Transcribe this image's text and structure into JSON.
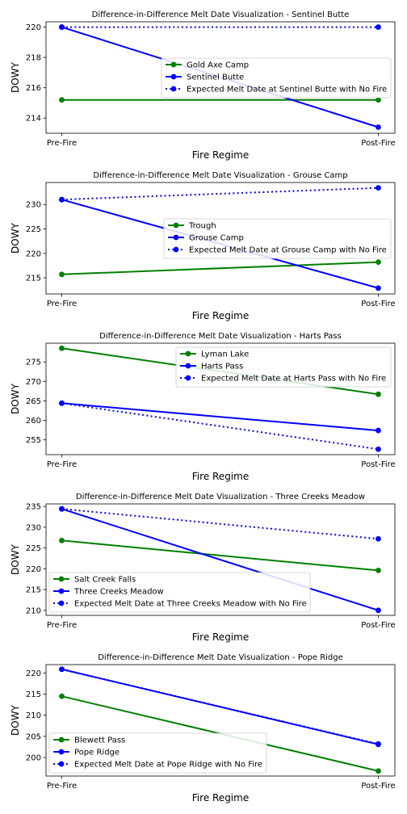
{
  "chart_data": [
    {
      "type": "line",
      "title": "Difference-in-Difference Melt Date Visualization - Sentinel Butte",
      "xlabel": "Fire Regime",
      "ylabel": "DOWY",
      "categories": [
        "Pre-Fire",
        "Post-Fire"
      ],
      "ylim": [
        213.0,
        220.35
      ],
      "yticks": [
        214,
        216,
        218,
        220
      ],
      "legend_position": "center-right",
      "series": [
        {
          "name": "Gold Axe Camp",
          "values": [
            215.2,
            215.2
          ],
          "color": "#008000",
          "style": "solid"
        },
        {
          "name": "Sentinel Butte",
          "values": [
            220.0,
            213.4
          ],
          "color": "#0000ff",
          "style": "solid"
        },
        {
          "name": "Expected Melt Date at Sentinel Butte with No Fire",
          "values": [
            220.0,
            220.0
          ],
          "color": "#0000ff",
          "style": "dotted"
        }
      ]
    },
    {
      "type": "line",
      "title": "Difference-in-Difference Melt Date Visualization - Grouse Camp",
      "xlabel": "Fire Regime",
      "ylabel": "DOWY",
      "categories": [
        "Pre-Fire",
        "Post-Fire"
      ],
      "ylim": [
        211.7,
        234.5
      ],
      "yticks": [
        215,
        220,
        225,
        230
      ],
      "legend_position": "center-right",
      "series": [
        {
          "name": "Trough",
          "values": [
            215.7,
            218.2
          ],
          "color": "#008000",
          "style": "solid"
        },
        {
          "name": "Grouse Camp",
          "values": [
            231.0,
            212.9
          ],
          "color": "#0000ff",
          "style": "solid"
        },
        {
          "name": "Expected Melt Date at Grouse Camp with No Fire",
          "values": [
            231.0,
            233.4
          ],
          "color": "#0000ff",
          "style": "dotted"
        }
      ]
    },
    {
      "type": "line",
      "title": "Difference-in-Difference Melt Date Visualization - Harts Pass",
      "xlabel": "Fire Regime",
      "ylabel": "DOWY",
      "categories": [
        "Pre-Fire",
        "Post-Fire"
      ],
      "ylim": [
        251.2,
        279.8
      ],
      "yticks": [
        255,
        260,
        265,
        270,
        275
      ],
      "legend_position": "upper-right",
      "series": [
        {
          "name": "Lyman Lake",
          "values": [
            278.5,
            266.7
          ],
          "color": "#008000",
          "style": "solid"
        },
        {
          "name": "Harts Pass",
          "values": [
            264.4,
            257.4
          ],
          "color": "#0000ff",
          "style": "solid"
        },
        {
          "name": "Expected Melt Date at Harts Pass with No Fire",
          "values": [
            264.4,
            252.6
          ],
          "color": "#0000ff",
          "style": "dotted"
        }
      ]
    },
    {
      "type": "line",
      "title": "Difference-in-Difference Melt Date Visualization - Three Creeks Meadow",
      "xlabel": "Fire Regime",
      "ylabel": "DOWY",
      "categories": [
        "Pre-Fire",
        "Post-Fire"
      ],
      "ylim": [
        208.8,
        235.6
      ],
      "yticks": [
        210,
        215,
        220,
        225,
        230,
        235
      ],
      "legend_position": "lower-left",
      "series": [
        {
          "name": "Salt Creek Falls",
          "values": [
            226.8,
            219.6
          ],
          "color": "#008000",
          "style": "solid"
        },
        {
          "name": "Three Creeks Meadow",
          "values": [
            234.4,
            210.0
          ],
          "color": "#0000ff",
          "style": "solid"
        },
        {
          "name": "Expected Melt Date at Three Creeks Meadow with No Fire",
          "values": [
            234.4,
            227.2
          ],
          "color": "#0000ff",
          "style": "dotted"
        }
      ]
    },
    {
      "type": "line",
      "title": "Difference-in-Difference Melt Date Visualization - Pope Ridge",
      "xlabel": "Fire Regime",
      "ylabel": "DOWY",
      "categories": [
        "Pre-Fire",
        "Post-Fire"
      ],
      "ylim": [
        195.6,
        222.0
      ],
      "yticks": [
        200,
        205,
        210,
        215,
        220
      ],
      "legend_position": "lower-left",
      "series": [
        {
          "name": "Blewett Pass",
          "values": [
            214.5,
            196.8
          ],
          "color": "#008000",
          "style": "solid"
        },
        {
          "name": "Pope Ridge",
          "values": [
            220.9,
            203.1
          ],
          "color": "#0000ff",
          "style": "solid"
        },
        {
          "name": "Expected Melt Date at Pope Ridge with No Fire",
          "values": [
            220.9,
            203.2
          ],
          "color": "#0000ff",
          "style": "dotted"
        }
      ]
    }
  ]
}
